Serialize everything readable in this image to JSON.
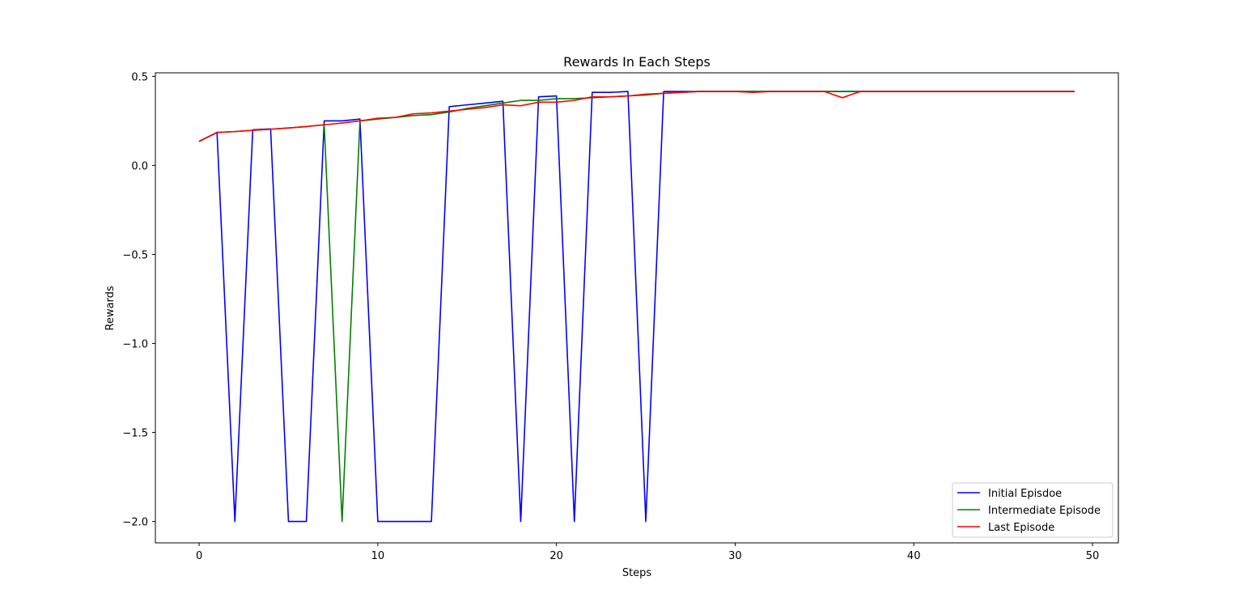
{
  "chart_data": {
    "type": "line",
    "title": "Rewards In Each Steps",
    "xlabel": "Steps",
    "ylabel": "Rewards",
    "xlim": [
      -2.45,
      51.45
    ],
    "ylim": [
      -2.12,
      0.52
    ],
    "xticks": [
      0,
      10,
      20,
      30,
      40,
      50
    ],
    "xtick_labels": [
      "0",
      "10",
      "20",
      "30",
      "40",
      "50"
    ],
    "yticks": [
      0.5,
      0.0,
      -0.5,
      -1.0,
      -1.5,
      -2.0
    ],
    "ytick_labels": [
      "0.5",
      "0.0",
      "−0.5",
      "−1.0",
      "−1.5",
      "−2.0"
    ],
    "grid": false,
    "legend_position": "bottom-right",
    "x": [
      0,
      1,
      2,
      3,
      4,
      5,
      6,
      7,
      8,
      9,
      10,
      11,
      12,
      13,
      14,
      15,
      16,
      17,
      18,
      19,
      20,
      21,
      22,
      23,
      24,
      25,
      26,
      27,
      28,
      29,
      30,
      31,
      32,
      33,
      34,
      35,
      36,
      37,
      38,
      39,
      40,
      41,
      42,
      43,
      44,
      45,
      46,
      47,
      48,
      49
    ],
    "series": [
      {
        "name": "Initial Episdoe",
        "color": "#0000ff",
        "values": [
          0.135,
          0.185,
          -2.0,
          0.2,
          0.205,
          -2.0,
          -2.0,
          0.25,
          0.25,
          0.26,
          -2.0,
          -2.0,
          -2.0,
          -2.0,
          0.33,
          0.34,
          0.35,
          0.36,
          -2.0,
          0.385,
          0.39,
          -2.0,
          0.41,
          0.41,
          0.415,
          -2.0,
          0.415,
          0.415,
          0.415,
          0.415,
          0.415,
          0.415,
          0.415,
          0.415,
          0.415,
          0.415,
          0.415,
          0.415,
          0.415,
          0.415,
          0.415,
          0.415,
          0.415,
          0.415,
          0.415,
          0.415,
          0.415,
          0.415,
          0.415,
          0.415
        ]
      },
      {
        "name": "Intermediate Episode",
        "color": "#008000",
        "values": [
          0.135,
          0.185,
          0.19,
          0.197,
          0.203,
          0.21,
          0.218,
          0.228,
          -2.0,
          0.25,
          0.26,
          0.27,
          0.28,
          0.285,
          0.3,
          0.32,
          0.335,
          0.35,
          0.365,
          0.365,
          0.375,
          0.375,
          0.38,
          0.385,
          0.39,
          0.395,
          0.405,
          0.41,
          0.415,
          0.415,
          0.415,
          0.415,
          0.415,
          0.415,
          0.415,
          0.415,
          0.415,
          0.415,
          0.415,
          0.415,
          0.415,
          0.415,
          0.415,
          0.415,
          0.415,
          0.415,
          0.415,
          0.415,
          0.415,
          0.415
        ]
      },
      {
        "name": "Last Episode",
        "color": "#ff0000",
        "values": [
          0.135,
          0.185,
          0.19,
          0.197,
          0.203,
          0.21,
          0.218,
          0.228,
          0.238,
          0.25,
          0.265,
          0.27,
          0.29,
          0.295,
          0.305,
          0.315,
          0.325,
          0.34,
          0.335,
          0.355,
          0.355,
          0.365,
          0.385,
          0.385,
          0.39,
          0.4,
          0.405,
          0.41,
          0.415,
          0.415,
          0.415,
          0.41,
          0.415,
          0.415,
          0.415,
          0.415,
          0.38,
          0.415,
          0.415,
          0.415,
          0.415,
          0.415,
          0.415,
          0.415,
          0.415,
          0.415,
          0.415,
          0.415,
          0.415,
          0.415
        ]
      }
    ]
  }
}
